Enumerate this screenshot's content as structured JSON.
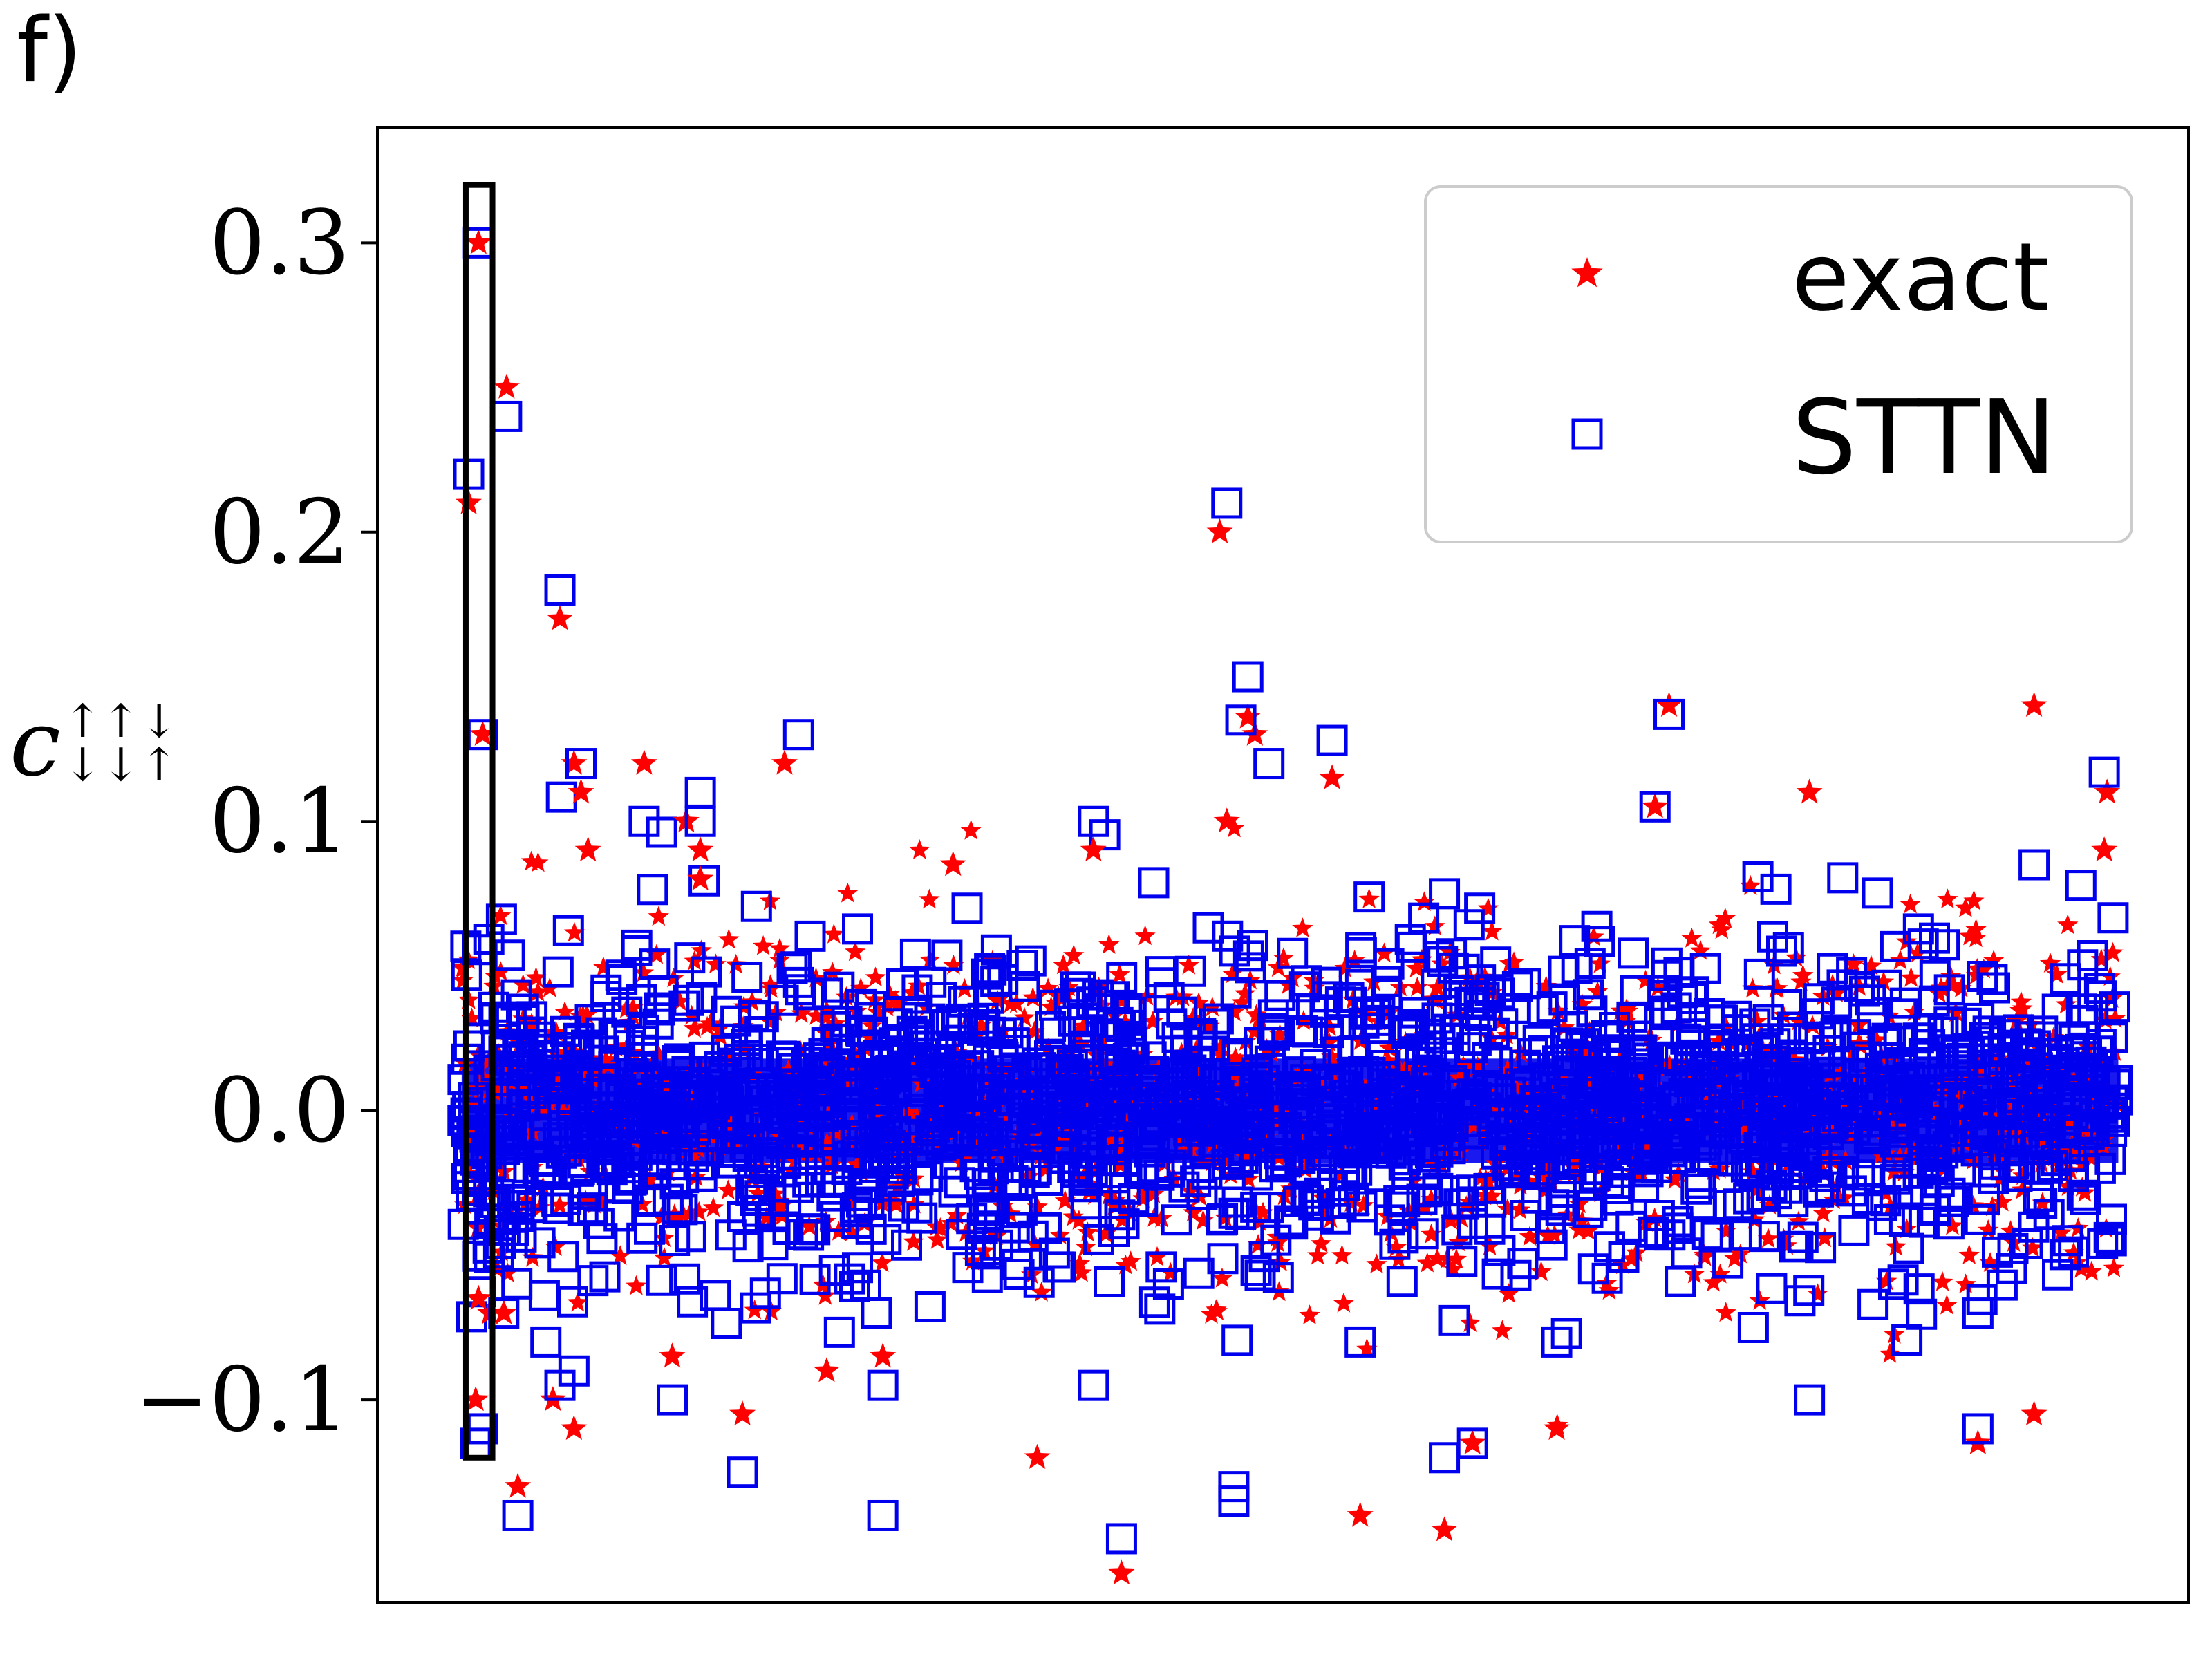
{
  "panel_label": "f)",
  "chart_data": {
    "type": "scatter",
    "title": "",
    "xlabel": "",
    "ylabel": {
      "symbol": "c",
      "superscript": "↑↑↓",
      "subscript": "↓↓↑"
    },
    "ylim": [
      -0.17,
      0.34
    ],
    "yticks": [
      -0.1,
      0.0,
      0.1,
      0.2,
      0.3
    ],
    "ytick_labels": [
      "−0.1",
      "0.0",
      "0.1",
      "0.2",
      "0.3"
    ],
    "xlim": [
      -60,
      1230
    ],
    "xticks_visible": false,
    "grid": false,
    "legend": {
      "placement": "top-right",
      "entries": [
        {
          "label": "exact",
          "marker": "star",
          "color": "#ff0000"
        },
        {
          "label": "STTN",
          "marker": "open-square",
          "color": "#0000ee"
        }
      ]
    },
    "highlight": {
      "x_range": [
        3,
        22
      ],
      "y_range": [
        -0.12,
        0.32
      ],
      "color": "#000000"
    },
    "series": [
      {
        "name": "exact",
        "marker": "star",
        "color": "#ff0000",
        "x": [
          12,
          5,
          15,
          32,
          70,
          80,
          85,
          90,
          130,
          160,
          170,
          170,
          230,
          350,
          450,
          540,
          545,
          560,
          565,
          620,
          850,
          860,
          960,
          1120,
          1170,
          1172,
          10,
          40,
          80,
          150,
          200,
          260,
          410,
          720,
          1080,
          12,
          20,
          30,
          65,
          300,
          470,
          640,
          700,
          780,
          1120
        ],
        "y": [
          0.3,
          0.21,
          0.13,
          0.25,
          0.17,
          0.12,
          0.11,
          0.09,
          0.12,
          0.1,
          0.09,
          0.08,
          0.12,
          0.085,
          0.09,
          0.2,
          0.1,
          0.136,
          0.13,
          0.115,
          0.105,
          0.14,
          0.11,
          0.14,
          0.09,
          0.11,
          -0.1,
          -0.13,
          -0.11,
          -0.085,
          -0.105,
          -0.09,
          -0.12,
          -0.115,
          -0.115,
          -0.065,
          -0.07,
          -0.07,
          -0.1,
          -0.085,
          -0.16,
          -0.14,
          -0.145,
          -0.11,
          -0.105
        ]
      },
      {
        "name": "STTN",
        "marker": "open-square",
        "color": "#0000ee",
        "x": [
          12,
          5,
          32,
          70,
          15,
          85,
          130,
          170,
          240,
          170,
          360,
          545,
          555,
          560,
          575,
          620,
          850,
          860,
          1120,
          1170,
          700,
          450,
          10,
          15,
          40,
          80,
          150,
          200,
          300,
          450,
          550,
          720,
          1080,
          30,
          60,
          70,
          300,
          470,
          550,
          640,
          700,
          780,
          920,
          960,
          1080,
          1020,
          1175
        ],
        "y": [
          0.3,
          0.22,
          0.24,
          0.18,
          0.13,
          0.12,
          0.1,
          0.11,
          0.13,
          0.1,
          0.07,
          0.21,
          0.135,
          0.15,
          0.12,
          0.128,
          0.105,
          0.137,
          0.085,
          0.117,
          0.075,
          0.1,
          -0.115,
          -0.11,
          -0.14,
          -0.09,
          -0.1,
          -0.125,
          -0.14,
          -0.095,
          -0.13,
          -0.115,
          -0.11,
          -0.07,
          -0.08,
          -0.095,
          -0.095,
          -0.148,
          -0.135,
          -0.08,
          -0.12,
          -0.08,
          -0.075,
          -0.1,
          -0.07,
          -0.06,
          -0.045
        ]
      }
    ]
  }
}
